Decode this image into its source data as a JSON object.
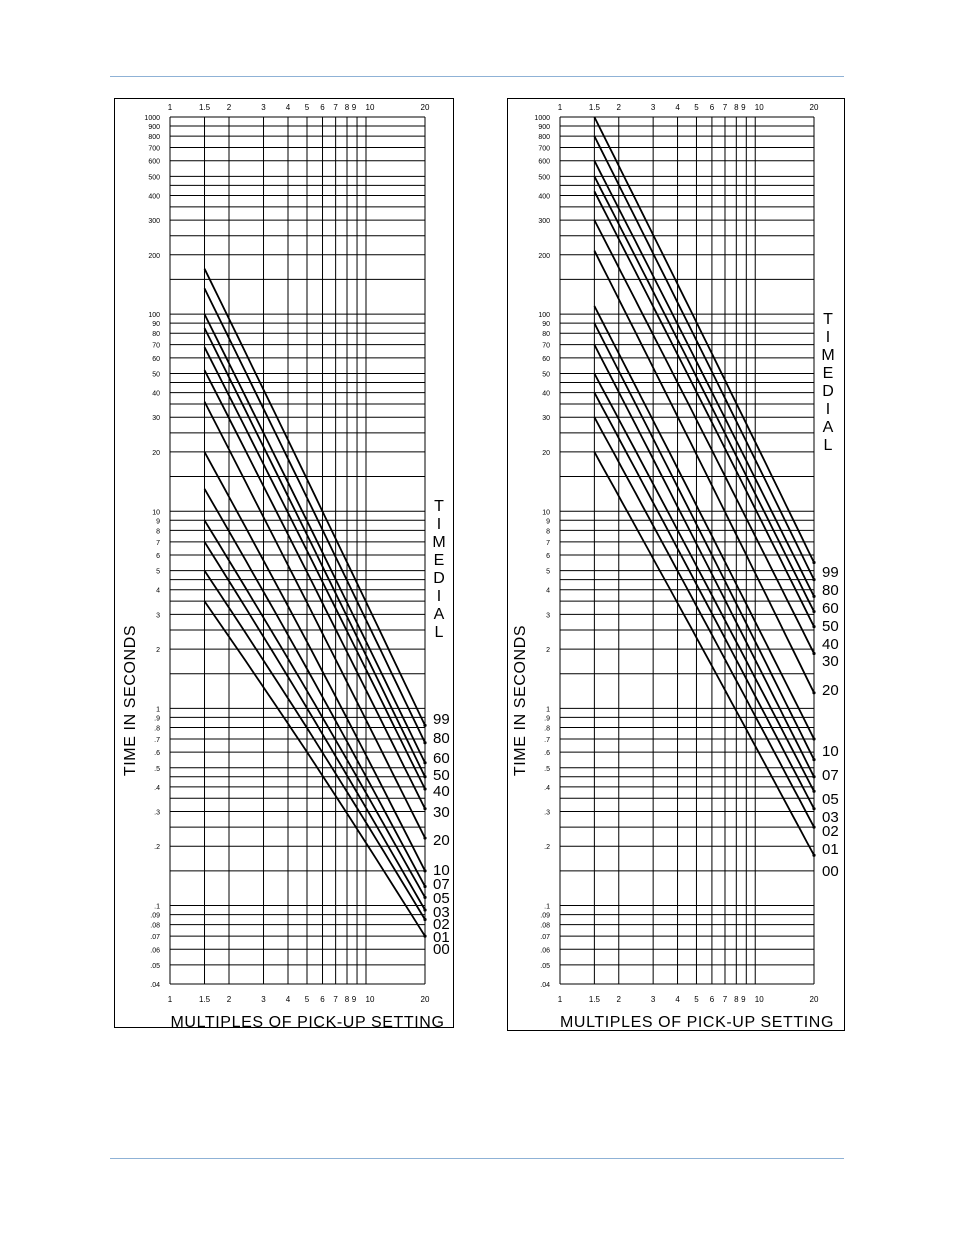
{
  "chart_data": [
    {
      "type": "line",
      "x_scale": "log",
      "y_scale": "log",
      "xlim": [
        1,
        20
      ],
      "ylim": [
        0.04,
        1000
      ],
      "grid": true,
      "xlabel": "MULTIPLES OF PICK-UP SETTING",
      "ylabel": "TIME IN SECONDS",
      "legend_title": "TIMEDIAL",
      "x_tick_labels": [
        "1",
        "1.5",
        "2",
        "3",
        "4",
        "5",
        "6",
        "7",
        "8",
        "9",
        "10",
        "20"
      ],
      "y_tick_labels": [
        "1000",
        "900",
        "800",
        "700",
        "600",
        "500",
        "400",
        "300",
        "200",
        "100",
        "90",
        "80",
        "70",
        "60",
        "50",
        "40",
        "30",
        "20",
        "10",
        "9",
        "8",
        "7",
        "6",
        "5",
        "4",
        "3",
        "2",
        "1",
        ".9",
        ".8",
        ".7",
        ".6",
        ".5",
        ".4",
        ".3",
        ".2",
        ".1",
        ".09",
        ".08",
        ".07",
        ".06",
        ".05",
        ".04"
      ],
      "series": [
        {
          "name": "99",
          "x": [
            1.5,
            20
          ],
          "y": [
            170,
            0.82
          ]
        },
        {
          "name": "80",
          "x": [
            1.5,
            20
          ],
          "y": [
            135,
            0.67
          ]
        },
        {
          "name": "60",
          "x": [
            1.5,
            20
          ],
          "y": [
            100,
            0.53
          ]
        },
        {
          "name": "50",
          "x": [
            1.5,
            20
          ],
          "y": [
            85,
            0.45
          ]
        },
        {
          "name": "40",
          "x": [
            1.5,
            20
          ],
          "y": [
            68,
            0.39
          ]
        },
        {
          "name": "30",
          "x": [
            1.5,
            20
          ],
          "y": [
            52,
            0.31
          ]
        },
        {
          "name": "20",
          "x": [
            1.5,
            20
          ],
          "y": [
            36,
            0.22
          ]
        },
        {
          "name": "10",
          "x": [
            1.5,
            20
          ],
          "y": [
            20,
            0.15
          ]
        },
        {
          "name": "07",
          "x": [
            1.5,
            20
          ],
          "y": [
            13,
            0.125
          ]
        },
        {
          "name": "05",
          "x": [
            1.5,
            20
          ],
          "y": [
            9,
            0.11
          ]
        },
        {
          "name": "03",
          "x": [
            1.5,
            20
          ],
          "y": [
            7,
            0.095
          ]
        },
        {
          "name": "02",
          "x": [
            1.5,
            20
          ],
          "y": [
            5,
            0.085
          ]
        },
        {
          "name": "01",
          "x": [
            1.5,
            20
          ],
          "y": [
            3.5,
            0.07
          ]
        }
      ]
    },
    {
      "type": "line",
      "x_scale": "log",
      "y_scale": "log",
      "xlim": [
        1,
        20
      ],
      "ylim": [
        0.04,
        1000
      ],
      "grid": true,
      "xlabel": "MULTIPLES OF PICK-UP SETTING",
      "ylabel": "TIME IN SECONDS",
      "legend_title": "TIMEDIAL",
      "x_tick_labels": [
        "1",
        "1.5",
        "2",
        "3",
        "4",
        "5",
        "6",
        "7",
        "8",
        "9",
        "10",
        "20"
      ],
      "y_tick_labels": [
        "1000",
        "900",
        "800",
        "700",
        "600",
        "500",
        "400",
        "300",
        "200",
        "100",
        "90",
        "80",
        "70",
        "60",
        "50",
        "40",
        "30",
        "20",
        "10",
        "9",
        "8",
        "7",
        "6",
        "5",
        "4",
        "3",
        "2",
        "1",
        ".9",
        ".8",
        ".7",
        ".6",
        ".5",
        ".4",
        ".3",
        ".2",
        ".1",
        ".09",
        ".08",
        ".07",
        ".06",
        ".05",
        ".04"
      ],
      "series": [
        {
          "name": "99",
          "x": [
            1.5,
            20
          ],
          "y": [
            1000,
            5.5
          ]
        },
        {
          "name": "80",
          "x": [
            1.5,
            20
          ],
          "y": [
            800,
            4.5
          ]
        },
        {
          "name": "60",
          "x": [
            1.5,
            20
          ],
          "y": [
            600,
            3.7
          ]
        },
        {
          "name": "50",
          "x": [
            1.5,
            20
          ],
          "y": [
            500,
            3.1
          ]
        },
        {
          "name": "40",
          "x": [
            1.5,
            20
          ],
          "y": [
            420,
            2.6
          ]
        },
        {
          "name": "30",
          "x": [
            1.5,
            20
          ],
          "y": [
            300,
            1.9
          ]
        },
        {
          "name": "20",
          "x": [
            1.5,
            20
          ],
          "y": [
            210,
            1.2
          ]
        },
        {
          "name": "10",
          "x": [
            1.5,
            20
          ],
          "y": [
            110,
            0.7
          ]
        },
        {
          "name": "07",
          "x": [
            1.5,
            20
          ],
          "y": [
            90,
            0.55
          ]
        },
        {
          "name": "05",
          "x": [
            1.5,
            20
          ],
          "y": [
            70,
            0.45
          ]
        },
        {
          "name": "03",
          "x": [
            1.5,
            20
          ],
          "y": [
            50,
            0.38
          ]
        },
        {
          "name": "02",
          "x": [
            1.5,
            20
          ],
          "y": [
            40,
            0.31
          ]
        },
        {
          "name": "01",
          "x": [
            1.5,
            20
          ],
          "y": [
            30,
            0.25
          ]
        },
        {
          "name": "00",
          "x": [
            1.5,
            20
          ],
          "y": [
            20,
            0.18
          ]
        }
      ]
    }
  ],
  "left_dial_labels": [
    "99",
    "80",
    "60",
    "50",
    "40",
    "30",
    "20",
    "10",
    "07",
    "05",
    "03",
    "02",
    "01",
    "00"
  ],
  "right_dial_labels": [
    "99",
    "80",
    "60",
    "50",
    "40",
    "30",
    "20",
    "10",
    "07",
    "05",
    "03",
    "02",
    "01",
    "00"
  ]
}
